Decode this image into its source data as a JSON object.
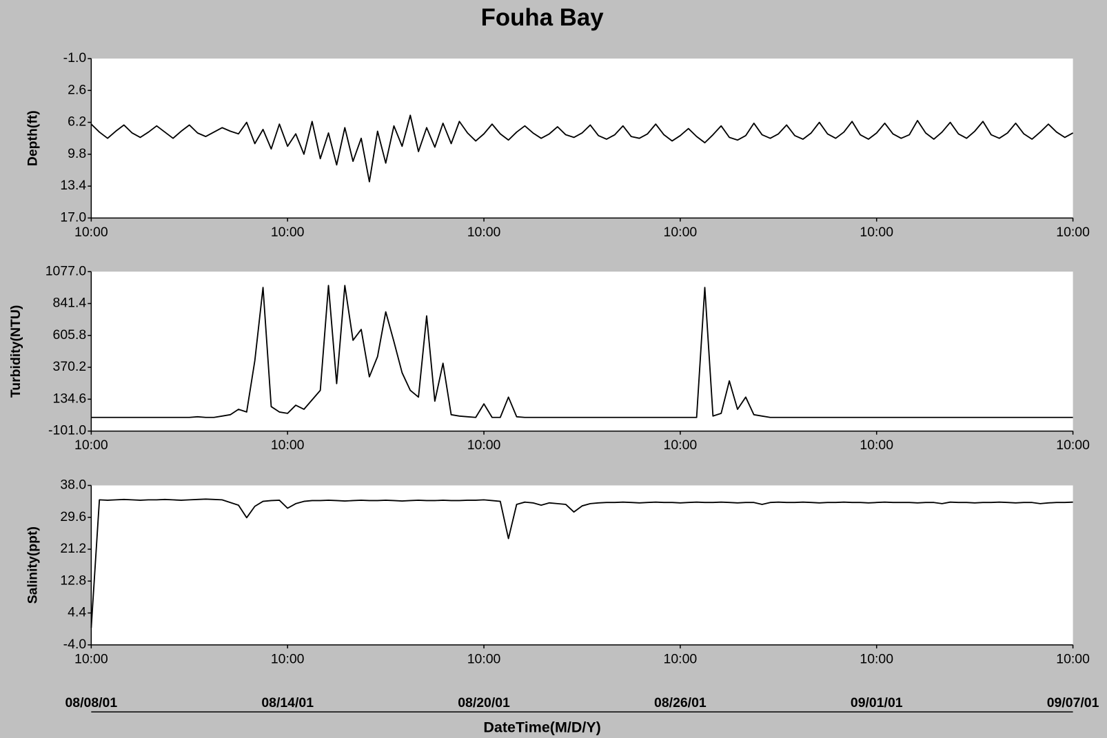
{
  "title": "Fouha Bay",
  "xlabel": "DateTime(M/D/Y)",
  "date_ticks": [
    {
      "value": "2001-08-08 10:00",
      "label": "08/08/01"
    },
    {
      "value": "2001-08-14 10:00",
      "label": "08/14/01"
    },
    {
      "value": "2001-08-20 10:00",
      "label": "08/20/01"
    },
    {
      "value": "2001-08-26 10:00",
      "label": "08/26/01"
    },
    {
      "value": "2001-09-01 10:00",
      "label": "09/01/01"
    },
    {
      "value": "2001-09-07 10:00",
      "label": "09/07/01"
    }
  ],
  "chart_data": [
    {
      "type": "line",
      "ylabel": "Depth(ft)",
      "color": "#000000",
      "xlim": [
        "2001-08-08 10:00",
        "2001-09-07 10:00"
      ],
      "xticks": [
        {
          "value": "2001-08-08 10:00",
          "label": "10:00"
        },
        {
          "value": "2001-08-14 10:00",
          "label": "10:00"
        },
        {
          "value": "2001-08-20 10:00",
          "label": "10:00"
        },
        {
          "value": "2001-08-26 10:00",
          "label": "10:00"
        },
        {
          "value": "2001-09-01 10:00",
          "label": "10:00"
        },
        {
          "value": "2001-09-07 10:00",
          "label": "10:00"
        }
      ],
      "ylim": [
        17,
        -1
      ],
      "yticks": [
        {
          "value": -1,
          "label": "-1.0"
        },
        2.6,
        6.2,
        9.8,
        13.4,
        {
          "value": 17,
          "label": "17.0"
        }
      ],
      "x": [
        "2001-08-08 10:00",
        "2001-08-08 16:00",
        "2001-08-08 22:00",
        "2001-08-09 04:00",
        "2001-08-09 10:00",
        "2001-08-09 16:00",
        "2001-08-09 22:00",
        "2001-08-10 04:00",
        "2001-08-10 10:00",
        "2001-08-10 16:00",
        "2001-08-10 22:00",
        "2001-08-11 04:00",
        "2001-08-11 10:00",
        "2001-08-11 16:00",
        "2001-08-11 22:00",
        "2001-08-12 04:00",
        "2001-08-12 10:00",
        "2001-08-12 16:00",
        "2001-08-12 22:00",
        "2001-08-13 04:00",
        "2001-08-13 10:00",
        "2001-08-13 16:00",
        "2001-08-13 22:00",
        "2001-08-14 04:00",
        "2001-08-14 10:00",
        "2001-08-14 16:00",
        "2001-08-14 22:00",
        "2001-08-15 04:00",
        "2001-08-15 10:00",
        "2001-08-15 16:00",
        "2001-08-15 22:00",
        "2001-08-16 04:00",
        "2001-08-16 10:00",
        "2001-08-16 16:00",
        "2001-08-16 22:00",
        "2001-08-17 04:00",
        "2001-08-17 10:00",
        "2001-08-17 16:00",
        "2001-08-17 22:00",
        "2001-08-18 04:00",
        "2001-08-18 10:00",
        "2001-08-18 16:00",
        "2001-08-18 22:00",
        "2001-08-19 04:00",
        "2001-08-19 10:00",
        "2001-08-19 16:00",
        "2001-08-19 22:00",
        "2001-08-20 04:00",
        "2001-08-20 10:00",
        "2001-08-20 16:00",
        "2001-08-20 22:00",
        "2001-08-21 04:00",
        "2001-08-21 10:00",
        "2001-08-21 16:00",
        "2001-08-21 22:00",
        "2001-08-22 04:00",
        "2001-08-22 10:00",
        "2001-08-22 16:00",
        "2001-08-22 22:00",
        "2001-08-23 04:00",
        "2001-08-23 10:00",
        "2001-08-23 16:00",
        "2001-08-23 22:00",
        "2001-08-24 04:00",
        "2001-08-24 10:00",
        "2001-08-24 16:00",
        "2001-08-24 22:00",
        "2001-08-25 04:00",
        "2001-08-25 10:00",
        "2001-08-25 16:00",
        "2001-08-25 22:00",
        "2001-08-26 04:00",
        "2001-08-26 10:00",
        "2001-08-26 16:00",
        "2001-08-26 22:00",
        "2001-08-27 04:00",
        "2001-08-27 10:00",
        "2001-08-27 16:00",
        "2001-08-27 22:00",
        "2001-08-28 04:00",
        "2001-08-28 10:00",
        "2001-08-28 16:00",
        "2001-08-28 22:00",
        "2001-08-29 04:00",
        "2001-08-29 10:00",
        "2001-08-29 16:00",
        "2001-08-29 22:00",
        "2001-08-30 04:00",
        "2001-08-30 10:00",
        "2001-08-30 16:00",
        "2001-08-30 22:00",
        "2001-08-31 04:00",
        "2001-08-31 10:00",
        "2001-08-31 16:00",
        "2001-08-31 22:00",
        "2001-09-01 04:00",
        "2001-09-01 10:00",
        "2001-09-01 16:00",
        "2001-09-01 22:00",
        "2001-09-02 04:00",
        "2001-09-02 10:00",
        "2001-09-02 16:00",
        "2001-09-02 22:00",
        "2001-09-03 04:00",
        "2001-09-03 10:00",
        "2001-09-03 16:00",
        "2001-09-03 22:00",
        "2001-09-04 04:00",
        "2001-09-04 10:00",
        "2001-09-04 16:00",
        "2001-09-04 22:00",
        "2001-09-05 04:00",
        "2001-09-05 10:00",
        "2001-09-05 16:00",
        "2001-09-05 22:00",
        "2001-09-06 04:00",
        "2001-09-06 10:00",
        "2001-09-06 16:00",
        "2001-09-06 22:00",
        "2001-09-07 04:00",
        "2001-09-07 10:00"
      ],
      "values": [
        6.4,
        7.3,
        8.0,
        7.2,
        6.5,
        7.4,
        7.9,
        7.3,
        6.6,
        7.3,
        8.0,
        7.2,
        6.5,
        7.4,
        7.8,
        7.3,
        6.8,
        7.2,
        7.5,
        6.2,
        8.6,
        7.0,
        9.2,
        6.4,
        8.9,
        7.5,
        9.8,
        6.1,
        10.3,
        7.4,
        11.0,
        6.8,
        10.6,
        8.0,
        12.9,
        7.2,
        10.8,
        6.6,
        8.9,
        5.4,
        9.5,
        6.8,
        9.0,
        6.3,
        8.6,
        6.1,
        7.4,
        8.3,
        7.5,
        6.4,
        7.5,
        8.2,
        7.3,
        6.6,
        7.4,
        8.0,
        7.5,
        6.7,
        7.6,
        7.9,
        7.4,
        6.5,
        7.7,
        8.1,
        7.6,
        6.6,
        7.8,
        8.0,
        7.5,
        6.4,
        7.6,
        8.3,
        7.7,
        6.9,
        7.8,
        8.5,
        7.6,
        6.6,
        7.9,
        8.2,
        7.7,
        6.3,
        7.6,
        8.0,
        7.5,
        6.5,
        7.7,
        8.1,
        7.4,
        6.2,
        7.5,
        8.0,
        7.3,
        6.1,
        7.6,
        8.1,
        7.4,
        6.3,
        7.5,
        8.0,
        7.6,
        6.0,
        7.4,
        8.1,
        7.3,
        6.2,
        7.5,
        8.0,
        7.2,
        6.1,
        7.6,
        8.0,
        7.4,
        6.3,
        7.5,
        8.1,
        7.3,
        6.4,
        7.3,
        7.9,
        7.4
      ]
    },
    {
      "type": "line",
      "ylabel": "Turbidity(NTU)",
      "color": "#000000",
      "xlim": [
        "2001-08-08 10:00",
        "2001-09-07 10:00"
      ],
      "xticks": [
        {
          "value": "2001-08-08 10:00",
          "label": "10:00"
        },
        {
          "value": "2001-08-14 10:00",
          "label": "10:00"
        },
        {
          "value": "2001-08-20 10:00",
          "label": "10:00"
        },
        {
          "value": "2001-08-26 10:00",
          "label": "10:00"
        },
        {
          "value": "2001-09-01 10:00",
          "label": "10:00"
        },
        {
          "value": "2001-09-07 10:00",
          "label": "10:00"
        }
      ],
      "ylim": [
        -101,
        1077
      ],
      "yticks": [
        {
          "value": -101,
          "label": "-101.0"
        },
        134.6,
        370.2,
        605.8,
        841.4,
        {
          "value": 1077,
          "label": "1077.0"
        }
      ],
      "x": [
        "2001-08-08 10:00",
        "2001-08-08 16:00",
        "2001-08-08 22:00",
        "2001-08-09 04:00",
        "2001-08-09 10:00",
        "2001-08-09 16:00",
        "2001-08-09 22:00",
        "2001-08-10 04:00",
        "2001-08-10 10:00",
        "2001-08-10 16:00",
        "2001-08-10 22:00",
        "2001-08-11 04:00",
        "2001-08-11 10:00",
        "2001-08-11 16:00",
        "2001-08-11 22:00",
        "2001-08-12 04:00",
        "2001-08-12 10:00",
        "2001-08-12 16:00",
        "2001-08-12 22:00",
        "2001-08-13 04:00",
        "2001-08-13 10:00",
        "2001-08-13 16:00",
        "2001-08-13 22:00",
        "2001-08-14 04:00",
        "2001-08-14 10:00",
        "2001-08-14 16:00",
        "2001-08-14 22:00",
        "2001-08-15 04:00",
        "2001-08-15 10:00",
        "2001-08-15 16:00",
        "2001-08-15 22:00",
        "2001-08-16 04:00",
        "2001-08-16 10:00",
        "2001-08-16 16:00",
        "2001-08-16 22:00",
        "2001-08-17 04:00",
        "2001-08-17 10:00",
        "2001-08-17 16:00",
        "2001-08-17 22:00",
        "2001-08-18 04:00",
        "2001-08-18 10:00",
        "2001-08-18 16:00",
        "2001-08-18 22:00",
        "2001-08-19 04:00",
        "2001-08-19 10:00",
        "2001-08-19 16:00",
        "2001-08-19 22:00",
        "2001-08-20 04:00",
        "2001-08-20 10:00",
        "2001-08-20 16:00",
        "2001-08-20 22:00",
        "2001-08-21 04:00",
        "2001-08-21 10:00",
        "2001-08-21 16:00",
        "2001-08-21 22:00",
        "2001-08-22 04:00",
        "2001-08-22 10:00",
        "2001-08-22 16:00",
        "2001-08-22 22:00",
        "2001-08-23 04:00",
        "2001-08-23 10:00",
        "2001-08-23 16:00",
        "2001-08-23 22:00",
        "2001-08-24 04:00",
        "2001-08-24 10:00",
        "2001-08-24 16:00",
        "2001-08-24 22:00",
        "2001-08-25 04:00",
        "2001-08-25 10:00",
        "2001-08-25 16:00",
        "2001-08-25 22:00",
        "2001-08-26 04:00",
        "2001-08-26 10:00",
        "2001-08-26 16:00",
        "2001-08-26 22:00",
        "2001-08-27 04:00",
        "2001-08-27 10:00",
        "2001-08-27 16:00",
        "2001-08-27 22:00",
        "2001-08-28 04:00",
        "2001-08-28 10:00",
        "2001-08-28 16:00",
        "2001-08-28 22:00",
        "2001-08-29 04:00",
        "2001-08-29 10:00",
        "2001-08-29 16:00",
        "2001-08-29 22:00",
        "2001-08-30 04:00",
        "2001-08-30 10:00",
        "2001-08-30 16:00",
        "2001-08-30 22:00",
        "2001-08-31 04:00",
        "2001-08-31 10:00",
        "2001-08-31 16:00",
        "2001-08-31 22:00",
        "2001-09-01 04:00",
        "2001-09-01 10:00",
        "2001-09-01 16:00",
        "2001-09-01 22:00",
        "2001-09-02 04:00",
        "2001-09-02 10:00",
        "2001-09-02 16:00",
        "2001-09-02 22:00",
        "2001-09-03 04:00",
        "2001-09-03 10:00",
        "2001-09-03 16:00",
        "2001-09-03 22:00",
        "2001-09-04 04:00",
        "2001-09-04 10:00",
        "2001-09-04 16:00",
        "2001-09-04 22:00",
        "2001-09-05 04:00",
        "2001-09-05 10:00",
        "2001-09-05 16:00",
        "2001-09-05 22:00",
        "2001-09-06 04:00",
        "2001-09-06 10:00",
        "2001-09-06 16:00",
        "2001-09-06 22:00",
        "2001-09-07 04:00",
        "2001-09-07 10:00"
      ],
      "values": [
        0,
        0,
        0,
        0,
        0,
        0,
        0,
        0,
        0,
        0,
        0,
        0,
        0,
        5,
        0,
        0,
        10,
        20,
        60,
        40,
        420,
        960,
        80,
        40,
        30,
        90,
        60,
        130,
        200,
        975,
        250,
        975,
        570,
        650,
        300,
        450,
        780,
        560,
        330,
        200,
        150,
        750,
        120,
        400,
        20,
        10,
        5,
        0,
        100,
        0,
        0,
        150,
        5,
        0,
        0,
        0,
        0,
        0,
        0,
        0,
        0,
        0,
        0,
        0,
        0,
        0,
        0,
        0,
        0,
        0,
        0,
        0,
        0,
        0,
        0,
        960,
        10,
        30,
        270,
        60,
        150,
        20,
        10,
        0,
        0,
        0,
        0,
        0,
        0,
        0,
        0,
        0,
        0,
        0,
        0,
        0,
        0,
        0,
        0,
        0,
        0,
        0,
        0,
        0,
        0,
        0,
        0,
        0,
        0,
        0,
        0,
        0,
        0,
        0,
        0,
        0,
        0,
        0,
        0,
        0,
        0
      ]
    },
    {
      "type": "line",
      "ylabel": "Salinity(ppt)",
      "color": "#000000",
      "xlim": [
        "2001-08-08 10:00",
        "2001-09-07 10:00"
      ],
      "xticks": [
        {
          "value": "2001-08-08 10:00",
          "label": "10:00"
        },
        {
          "value": "2001-08-14 10:00",
          "label": "10:00"
        },
        {
          "value": "2001-08-20 10:00",
          "label": "10:00"
        },
        {
          "value": "2001-08-26 10:00",
          "label": "10:00"
        },
        {
          "value": "2001-09-01 10:00",
          "label": "10:00"
        },
        {
          "value": "2001-09-07 10:00",
          "label": "10:00"
        }
      ],
      "ylim": [
        -4,
        38
      ],
      "yticks": [
        {
          "value": -4,
          "label": "-4.0"
        },
        4.4,
        12.8,
        21.2,
        29.6,
        {
          "value": 38,
          "label": "38.0"
        }
      ],
      "x": [
        "2001-08-08 10:00",
        "2001-08-08 16:00",
        "2001-08-08 22:00",
        "2001-08-09 04:00",
        "2001-08-09 10:00",
        "2001-08-09 16:00",
        "2001-08-09 22:00",
        "2001-08-10 04:00",
        "2001-08-10 10:00",
        "2001-08-10 16:00",
        "2001-08-10 22:00",
        "2001-08-11 04:00",
        "2001-08-11 10:00",
        "2001-08-11 16:00",
        "2001-08-11 22:00",
        "2001-08-12 04:00",
        "2001-08-12 10:00",
        "2001-08-12 16:00",
        "2001-08-12 22:00",
        "2001-08-13 04:00",
        "2001-08-13 10:00",
        "2001-08-13 16:00",
        "2001-08-13 22:00",
        "2001-08-14 04:00",
        "2001-08-14 10:00",
        "2001-08-14 16:00",
        "2001-08-14 22:00",
        "2001-08-15 04:00",
        "2001-08-15 10:00",
        "2001-08-15 16:00",
        "2001-08-15 22:00",
        "2001-08-16 04:00",
        "2001-08-16 10:00",
        "2001-08-16 16:00",
        "2001-08-16 22:00",
        "2001-08-17 04:00",
        "2001-08-17 10:00",
        "2001-08-17 16:00",
        "2001-08-17 22:00",
        "2001-08-18 04:00",
        "2001-08-18 10:00",
        "2001-08-18 16:00",
        "2001-08-18 22:00",
        "2001-08-19 04:00",
        "2001-08-19 10:00",
        "2001-08-19 16:00",
        "2001-08-19 22:00",
        "2001-08-20 04:00",
        "2001-08-20 10:00",
        "2001-08-20 16:00",
        "2001-08-20 22:00",
        "2001-08-21 04:00",
        "2001-08-21 10:00",
        "2001-08-21 16:00",
        "2001-08-21 22:00",
        "2001-08-22 04:00",
        "2001-08-22 10:00",
        "2001-08-22 16:00",
        "2001-08-22 22:00",
        "2001-08-23 04:00",
        "2001-08-23 10:00",
        "2001-08-23 16:00",
        "2001-08-23 22:00",
        "2001-08-24 04:00",
        "2001-08-24 10:00",
        "2001-08-24 16:00",
        "2001-08-24 22:00",
        "2001-08-25 04:00",
        "2001-08-25 10:00",
        "2001-08-25 16:00",
        "2001-08-25 22:00",
        "2001-08-26 04:00",
        "2001-08-26 10:00",
        "2001-08-26 16:00",
        "2001-08-26 22:00",
        "2001-08-27 04:00",
        "2001-08-27 10:00",
        "2001-08-27 16:00",
        "2001-08-27 22:00",
        "2001-08-28 04:00",
        "2001-08-28 10:00",
        "2001-08-28 16:00",
        "2001-08-28 22:00",
        "2001-08-29 04:00",
        "2001-08-29 10:00",
        "2001-08-29 16:00",
        "2001-08-29 22:00",
        "2001-08-30 04:00",
        "2001-08-30 10:00",
        "2001-08-30 16:00",
        "2001-08-30 22:00",
        "2001-08-31 04:00",
        "2001-08-31 10:00",
        "2001-08-31 16:00",
        "2001-08-31 22:00",
        "2001-09-01 04:00",
        "2001-09-01 10:00",
        "2001-09-01 16:00",
        "2001-09-01 22:00",
        "2001-09-02 04:00",
        "2001-09-02 10:00",
        "2001-09-02 16:00",
        "2001-09-02 22:00",
        "2001-09-03 04:00",
        "2001-09-03 10:00",
        "2001-09-03 16:00",
        "2001-09-03 22:00",
        "2001-09-04 04:00",
        "2001-09-04 10:00",
        "2001-09-04 16:00",
        "2001-09-04 22:00",
        "2001-09-05 04:00",
        "2001-09-05 10:00",
        "2001-09-05 16:00",
        "2001-09-05 22:00",
        "2001-09-06 04:00",
        "2001-09-06 10:00",
        "2001-09-06 16:00",
        "2001-09-06 22:00",
        "2001-09-07 04:00",
        "2001-09-07 10:00"
      ],
      "values": [
        0.5,
        34.2,
        34.1,
        34.2,
        34.3,
        34.2,
        34.1,
        34.2,
        34.2,
        34.3,
        34.2,
        34.1,
        34.2,
        34.3,
        34.4,
        34.3,
        34.2,
        33.5,
        32.8,
        29.5,
        32.5,
        33.8,
        34.0,
        34.1,
        32.0,
        33.2,
        33.8,
        34.0,
        34.0,
        34.1,
        34.0,
        33.9,
        34.0,
        34.1,
        34.0,
        34.0,
        34.1,
        34.0,
        33.9,
        34.0,
        34.1,
        34.0,
        34.0,
        34.1,
        34.0,
        34.0,
        34.1,
        34.1,
        34.2,
        34.0,
        33.8,
        24.0,
        33.0,
        33.6,
        33.4,
        32.8,
        33.4,
        33.2,
        33.0,
        31.0,
        32.6,
        33.2,
        33.4,
        33.5,
        33.5,
        33.6,
        33.5,
        33.4,
        33.5,
        33.6,
        33.5,
        33.5,
        33.4,
        33.5,
        33.6,
        33.5,
        33.5,
        33.6,
        33.5,
        33.4,
        33.5,
        33.5,
        33.0,
        33.5,
        33.6,
        33.5,
        33.5,
        33.6,
        33.5,
        33.4,
        33.5,
        33.5,
        33.6,
        33.5,
        33.5,
        33.4,
        33.5,
        33.6,
        33.5,
        33.5,
        33.5,
        33.4,
        33.5,
        33.5,
        33.2,
        33.6,
        33.5,
        33.5,
        33.4,
        33.5,
        33.5,
        33.6,
        33.5,
        33.4,
        33.5,
        33.5,
        33.2,
        33.4,
        33.5,
        33.5,
        33.6
      ]
    }
  ]
}
